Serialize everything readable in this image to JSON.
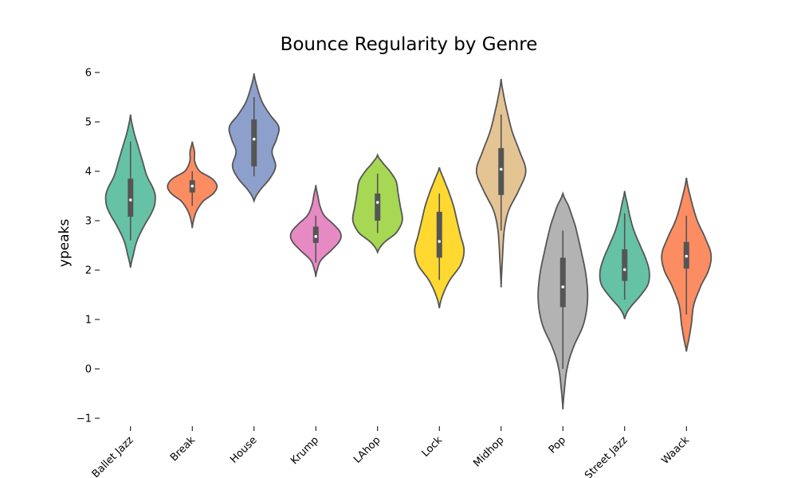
{
  "chart_data": {
    "type": "violin",
    "title": "Bounce Regularity by Genre",
    "xlabel": "",
    "ylabel": "ypeaks",
    "ylim": [
      -1.2,
      6.3
    ],
    "yticks": [
      -1,
      0,
      1,
      2,
      3,
      4,
      5,
      6
    ],
    "ytick_labels": [
      "−1",
      "0",
      "1",
      "2",
      "3",
      "4",
      "5",
      "6"
    ],
    "grid": false,
    "categories": [
      "Ballet Jazz",
      "Break",
      "House",
      "Krump",
      "LAhop",
      "Lock",
      "Midhop",
      "Pop",
      "Street Jazz",
      "Waack"
    ],
    "colors": [
      "#66c2a5",
      "#fc8d62",
      "#8da0cb",
      "#e78ac3",
      "#a6d854",
      "#ffd92f",
      "#e5c494",
      "#b3b3b3",
      "#66c2a5",
      "#fc8d62"
    ],
    "series": [
      {
        "name": "Ballet Jazz",
        "min": 2.05,
        "max": 5.15,
        "q1": 3.08,
        "median": 3.42,
        "q3": 3.85,
        "whisker_low": 2.6,
        "whisker_high": 4.6,
        "density": [
          [
            2.05,
            0.0
          ],
          [
            2.3,
            0.05
          ],
          [
            2.6,
            0.12
          ],
          [
            2.9,
            0.25
          ],
          [
            3.2,
            0.4
          ],
          [
            3.4,
            0.45
          ],
          [
            3.6,
            0.43
          ],
          [
            3.9,
            0.3
          ],
          [
            4.2,
            0.22
          ],
          [
            4.5,
            0.14
          ],
          [
            4.8,
            0.06
          ],
          [
            5.15,
            0.0
          ]
        ]
      },
      {
        "name": "Break",
        "min": 2.85,
        "max": 4.6,
        "q1": 3.57,
        "median": 3.7,
        "q3": 3.82,
        "whisker_low": 3.3,
        "whisker_high": 4.0,
        "density": [
          [
            2.85,
            0.0
          ],
          [
            3.0,
            0.05
          ],
          [
            3.2,
            0.18
          ],
          [
            3.4,
            0.45
          ],
          [
            3.55,
            0.85
          ],
          [
            3.7,
            1.0
          ],
          [
            3.85,
            0.8
          ],
          [
            4.0,
            0.3
          ],
          [
            4.2,
            0.1
          ],
          [
            4.4,
            0.09
          ],
          [
            4.6,
            0.0
          ]
        ]
      },
      {
        "name": "House",
        "min": 3.4,
        "max": 5.98,
        "q1": 4.1,
        "median": 4.65,
        "q3": 5.05,
        "whisker_low": 3.9,
        "whisker_high": 5.5,
        "density": [
          [
            3.4,
            0.0
          ],
          [
            3.6,
            0.12
          ],
          [
            3.85,
            0.35
          ],
          [
            4.1,
            0.48
          ],
          [
            4.4,
            0.4
          ],
          [
            4.65,
            0.5
          ],
          [
            4.9,
            0.55
          ],
          [
            5.15,
            0.35
          ],
          [
            5.4,
            0.18
          ],
          [
            5.7,
            0.07
          ],
          [
            5.98,
            0.0
          ]
        ]
      },
      {
        "name": "Krump",
        "min": 1.86,
        "max": 3.72,
        "q1": 2.55,
        "median": 2.68,
        "q3": 2.88,
        "whisker_low": 2.15,
        "whisker_high": 3.1,
        "density": [
          [
            1.86,
            0.0
          ],
          [
            2.0,
            0.04
          ],
          [
            2.2,
            0.15
          ],
          [
            2.4,
            0.45
          ],
          [
            2.6,
            0.7
          ],
          [
            2.75,
            0.72
          ],
          [
            2.9,
            0.55
          ],
          [
            3.1,
            0.25
          ],
          [
            3.3,
            0.12
          ],
          [
            3.5,
            0.06
          ],
          [
            3.72,
            0.0
          ]
        ]
      },
      {
        "name": "LAhop",
        "min": 2.36,
        "max": 4.33,
        "q1": 3.0,
        "median": 3.37,
        "q3": 3.55,
        "whisker_low": 2.75,
        "whisker_high": 3.95,
        "density": [
          [
            2.36,
            0.0
          ],
          [
            2.55,
            0.15
          ],
          [
            2.75,
            0.45
          ],
          [
            3.0,
            0.6
          ],
          [
            3.3,
            0.55
          ],
          [
            3.55,
            0.5
          ],
          [
            3.8,
            0.45
          ],
          [
            4.0,
            0.3
          ],
          [
            4.2,
            0.1
          ],
          [
            4.33,
            0.0
          ]
        ]
      },
      {
        "name": "Lock",
        "min": 1.23,
        "max": 4.08,
        "q1": 2.25,
        "median": 2.58,
        "q3": 3.18,
        "whisker_low": 1.8,
        "whisker_high": 3.55,
        "density": [
          [
            1.23,
            0.0
          ],
          [
            1.5,
            0.05
          ],
          [
            1.8,
            0.15
          ],
          [
            2.1,
            0.3
          ],
          [
            2.4,
            0.35
          ],
          [
            2.7,
            0.3
          ],
          [
            3.0,
            0.25
          ],
          [
            3.3,
            0.2
          ],
          [
            3.6,
            0.13
          ],
          [
            3.85,
            0.06
          ],
          [
            4.08,
            0.0
          ]
        ]
      },
      {
        "name": "Midhop",
        "min": 1.65,
        "max": 5.87,
        "q1": 3.52,
        "median": 4.04,
        "q3": 4.47,
        "whisker_low": 2.8,
        "whisker_high": 5.15,
        "density": [
          [
            1.65,
            0.0
          ],
          [
            2.2,
            0.02
          ],
          [
            2.8,
            0.05
          ],
          [
            3.2,
            0.12
          ],
          [
            3.6,
            0.28
          ],
          [
            4.0,
            0.4
          ],
          [
            4.4,
            0.3
          ],
          [
            4.8,
            0.18
          ],
          [
            5.2,
            0.1
          ],
          [
            5.55,
            0.04
          ],
          [
            5.87,
            0.0
          ]
        ]
      },
      {
        "name": "Pop",
        "min": -0.82,
        "max": 3.55,
        "q1": 1.25,
        "median": 1.66,
        "q3": 2.25,
        "whisker_low": 0.0,
        "whisker_high": 2.8,
        "density": [
          [
            -0.82,
            0.0
          ],
          [
            -0.4,
            0.02
          ],
          [
            0.0,
            0.05
          ],
          [
            0.4,
            0.12
          ],
          [
            0.9,
            0.25
          ],
          [
            1.4,
            0.3
          ],
          [
            1.9,
            0.28
          ],
          [
            2.4,
            0.22
          ],
          [
            2.9,
            0.15
          ],
          [
            3.3,
            0.07
          ],
          [
            3.55,
            0.0
          ]
        ]
      },
      {
        "name": "Street Jazz",
        "min": 1.01,
        "max": 3.6,
        "q1": 1.78,
        "median": 2.01,
        "q3": 2.42,
        "whisker_low": 1.4,
        "whisker_high": 3.15,
        "density": [
          [
            1.01,
            0.0
          ],
          [
            1.2,
            0.08
          ],
          [
            1.45,
            0.28
          ],
          [
            1.7,
            0.45
          ],
          [
            1.95,
            0.48
          ],
          [
            2.2,
            0.42
          ],
          [
            2.5,
            0.3
          ],
          [
            2.8,
            0.18
          ],
          [
            3.1,
            0.1
          ],
          [
            3.35,
            0.05
          ],
          [
            3.6,
            0.0
          ]
        ]
      },
      {
        "name": "Waack",
        "min": 0.35,
        "max": 3.87,
        "q1": 2.03,
        "median": 2.28,
        "q3": 2.57,
        "whisker_low": 1.1,
        "whisker_high": 3.1,
        "density": [
          [
            0.35,
            0.0
          ],
          [
            0.6,
            0.05
          ],
          [
            0.9,
            0.1
          ],
          [
            1.3,
            0.15
          ],
          [
            1.7,
            0.3
          ],
          [
            2.0,
            0.45
          ],
          [
            2.3,
            0.5
          ],
          [
            2.6,
            0.4
          ],
          [
            3.0,
            0.22
          ],
          [
            3.4,
            0.1
          ],
          [
            3.87,
            0.0
          ]
        ]
      }
    ]
  }
}
